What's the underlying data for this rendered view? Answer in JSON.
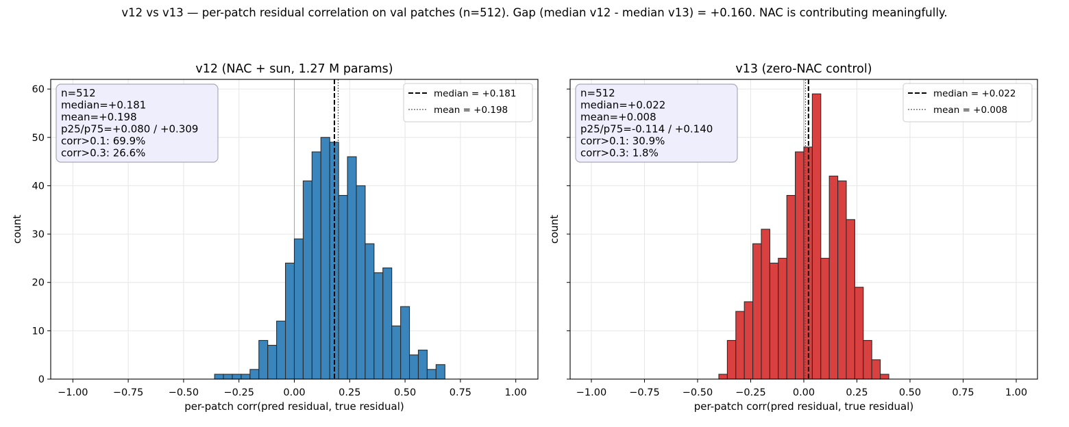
{
  "suptitle": "v12 vs v13 — per-patch residual correlation on val patches (n=512). Gap (median v12 - median v13) = +0.160. NAC is contributing meaningfully.",
  "chart_data": [
    {
      "type": "bar",
      "title": "v12 (NAC + sun, 1.27 M params)",
      "xlabel": "per-patch corr(pred residual, true residual)",
      "ylabel": "count",
      "xlim": [
        -1.1,
        1.1
      ],
      "ylim": [
        0,
        62
      ],
      "xticks": [
        -1.0,
        -0.75,
        -0.5,
        -0.25,
        0.0,
        0.25,
        0.5,
        0.75,
        1.0
      ],
      "xtick_labels": [
        "−1.00",
        "−0.75",
        "−0.50",
        "−0.25",
        "0.00",
        "0.25",
        "0.50",
        "0.75",
        "1.00"
      ],
      "yticks": [
        0,
        10,
        20,
        30,
        40,
        50,
        60
      ],
      "grid": true,
      "bin_start": -1.0,
      "bin_width": 0.04,
      "counts": [
        0,
        0,
        0,
        0,
        0,
        0,
        0,
        0,
        0,
        0,
        0,
        0,
        0,
        0,
        0,
        0,
        1,
        1,
        1,
        1,
        2,
        8,
        7,
        12,
        24,
        29,
        41,
        47,
        50,
        49,
        38,
        46,
        40,
        28,
        22,
        23,
        11,
        15,
        5,
        6,
        2,
        3,
        0,
        0,
        0,
        0,
        0,
        0,
        0,
        0
      ],
      "color": "#3a85bb",
      "zero_line": true,
      "median": 0.181,
      "mean": 0.198,
      "legend": [
        "median = +0.181",
        "mean = +0.198"
      ],
      "legend_loc": "upper right",
      "stats": [
        "n=512",
        "median=+0.181",
        "mean=+0.198",
        "p25/p75=+0.080 / +0.309",
        "corr>0.1: 69.9%",
        "corr>0.3: 26.6%"
      ]
    },
    {
      "type": "bar",
      "title": "v13 (zero-NAC control)",
      "xlabel": "per-patch corr(pred residual, true residual)",
      "ylabel": "count",
      "xlim": [
        -1.1,
        1.1
      ],
      "ylim": [
        0,
        62
      ],
      "xticks": [
        -1.0,
        -0.75,
        -0.5,
        -0.25,
        0.0,
        0.25,
        0.5,
        0.75,
        1.0
      ],
      "xtick_labels": [
        "−1.00",
        "−0.75",
        "−0.50",
        "−0.25",
        "0.00",
        "0.25",
        "0.50",
        "0.75",
        "1.00"
      ],
      "yticks": [
        0,
        10,
        20,
        30,
        40,
        50,
        60
      ],
      "grid": true,
      "bin_start": -1.0,
      "bin_width": 0.04,
      "counts": [
        0,
        0,
        0,
        0,
        0,
        0,
        0,
        0,
        0,
        0,
        0,
        0,
        0,
        0,
        0,
        1,
        8,
        14,
        16,
        28,
        31,
        24,
        25,
        38,
        47,
        48,
        59,
        25,
        42,
        41,
        33,
        19,
        8,
        4,
        1,
        0,
        0,
        0,
        0,
        0,
        0,
        0,
        0,
        0,
        0,
        0,
        0,
        0,
        0,
        0
      ],
      "color": "#d94040",
      "zero_line": true,
      "median": 0.022,
      "mean": 0.008,
      "legend": [
        "median = +0.022",
        "mean = +0.008"
      ],
      "legend_loc": "upper right",
      "stats": [
        "n=512",
        "median=+0.022",
        "mean=+0.008",
        "p25/p75=-0.114 / +0.140",
        "corr>0.1: 30.9%",
        "corr>0.3: 1.8%"
      ]
    }
  ]
}
